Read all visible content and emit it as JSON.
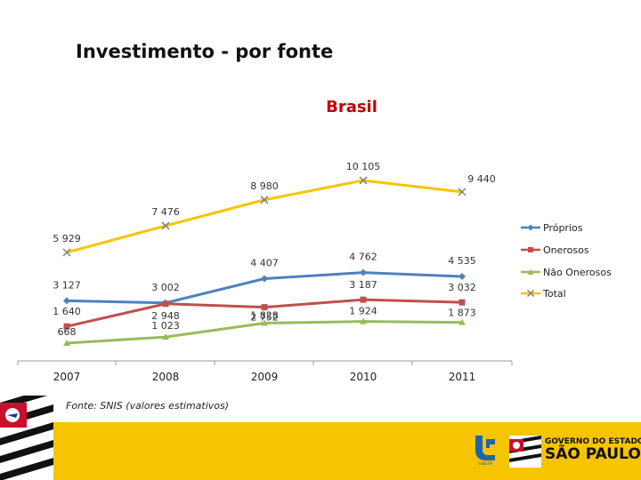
{
  "page": {
    "title": "Investimento - por fonte",
    "source": "Fonte: SNIS (valores estimativos)"
  },
  "chart_data": {
    "type": "line",
    "title": "Brasil",
    "categories": [
      "2007",
      "2008",
      "2009",
      "2010",
      "2011"
    ],
    "ylim": [
      0,
      11000
    ],
    "series": [
      {
        "name": "Próprios",
        "values": [
          3127,
          3002,
          4407,
          4762,
          4535
        ],
        "labels": [
          "3 127",
          "3 002",
          "4 407",
          "4 762",
          "4 535"
        ],
        "color": "#4f81bd",
        "marker": "diamond"
      },
      {
        "name": "Onerosos",
        "values": [
          1640,
          2948,
          2752,
          3187,
          3032
        ],
        "labels": [
          "1 640",
          "2 948",
          "2 752",
          "3 187",
          "3 032"
        ],
        "color": "#c0504d",
        "marker": "square"
      },
      {
        "name": "Não Onerosos",
        "values": [
          668,
          1023,
          1828,
          1924,
          1873
        ],
        "labels": [
          "668",
          "1 023",
          "1 828",
          "1 924",
          "1 873"
        ],
        "color": "#9bbb59",
        "marker": "triangle"
      },
      {
        "name": "Total",
        "values": [
          5929,
          7476,
          8980,
          10105,
          9440
        ],
        "labels": [
          "5 929",
          "7 476",
          "8 980",
          "10 105",
          "9 440"
        ],
        "color": "#f5c400",
        "marker": "x"
      }
    ]
  },
  "footer": {
    "sabesp": "SABESP",
    "gov_line": "GOVERNO DO ESTADO",
    "state": "SÃO PAULO",
    "colors": {
      "band": "#f6c400",
      "sabesp_blue": "#1a66b0"
    }
  }
}
